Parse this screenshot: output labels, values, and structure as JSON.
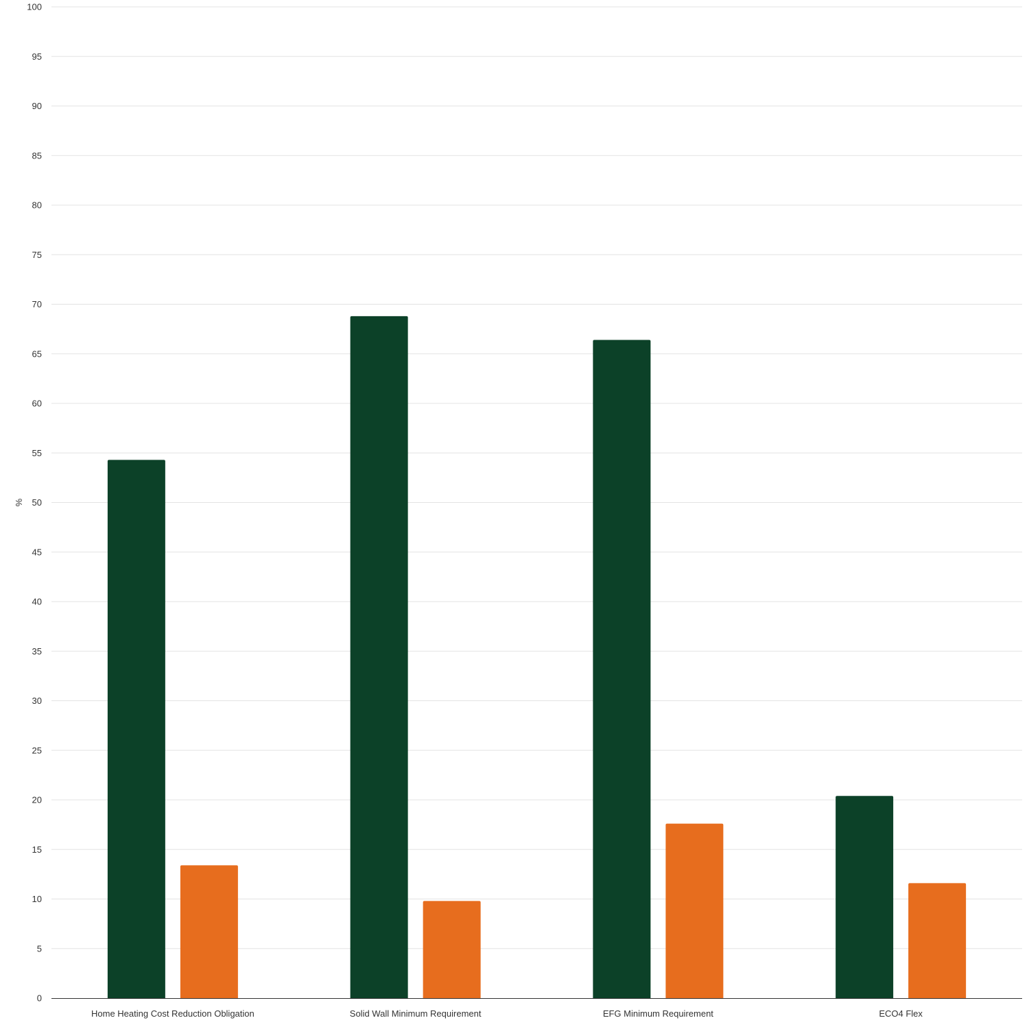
{
  "chart_data": {
    "type": "bar",
    "title": "",
    "xlabel": "",
    "ylabel": "%",
    "ylim": [
      0,
      100
    ],
    "ytick_step": 5,
    "grid": true,
    "legend": "none",
    "categories": [
      "Home Heating Cost Reduction Obligation",
      "Solid Wall Minimum Requirement",
      "EFG Minimum Requirement",
      "ECO4 Flex"
    ],
    "series": [
      {
        "values": [
          54.3,
          68.8,
          66.4,
          20.4
        ],
        "color": "#0c4128"
      },
      {
        "values": [
          13.4,
          9.8,
          17.6,
          11.6
        ],
        "color": "#e76d1e"
      }
    ]
  }
}
